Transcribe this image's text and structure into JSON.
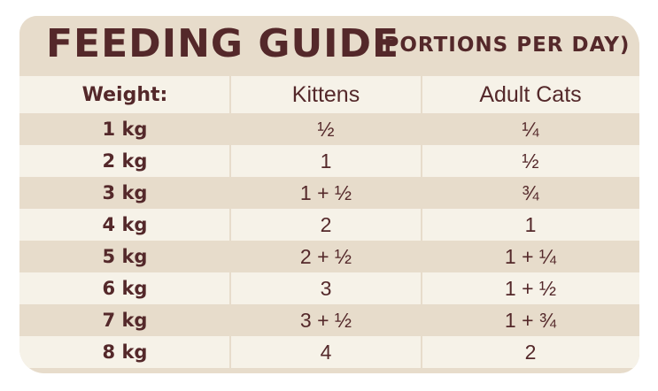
{
  "title": {
    "main": "FEEDING GUIDE",
    "sub": "(PORTIONS PER DAY)"
  },
  "table": {
    "headers": [
      "Weight:",
      "Kittens",
      "Adult Cats"
    ],
    "rows": [
      [
        "1 kg",
        "½",
        "¼"
      ],
      [
        "2 kg",
        "1",
        "½"
      ],
      [
        "3 kg",
        "1 + ½",
        "¾"
      ],
      [
        "4 kg",
        "2",
        "1"
      ],
      [
        "5 kg",
        "2 + ½",
        "1 + ¼"
      ],
      [
        "6 kg",
        "3",
        "1 + ½"
      ],
      [
        "7 kg",
        "3 + ½",
        "1 + ¾"
      ],
      [
        "8 kg",
        "4",
        "2"
      ]
    ]
  },
  "colors": {
    "text": "#54282a",
    "band_dark": "#e7dccb",
    "band_light": "#f6f2e8"
  }
}
